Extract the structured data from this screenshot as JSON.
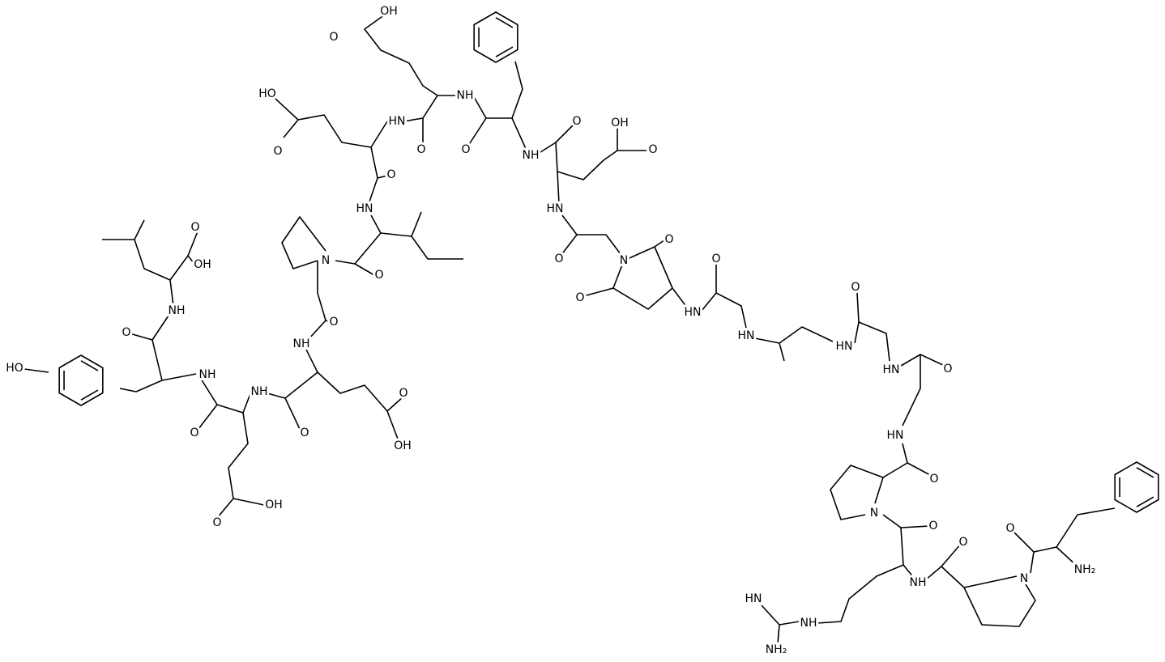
{
  "atom_labels": [
    "OH",
    "O",
    "HO",
    "O",
    "NH",
    "HN",
    "O",
    "O",
    "O",
    "OH",
    "O",
    "NH",
    "O",
    "HN",
    "HN",
    "O",
    "N",
    "O",
    "N",
    "O",
    "OH",
    "O",
    "O",
    "O",
    "HN",
    "O",
    "NH",
    "NH",
    "O",
    "HN",
    "HN",
    "O",
    "HN",
    "O",
    "HO",
    "NH",
    "NH",
    "O",
    "O",
    "O",
    "OH",
    "HN",
    "O",
    "OH",
    "O",
    "N",
    "O",
    "O",
    "O",
    "N",
    "NH₂",
    "HN",
    "NH",
    "NH",
    "NH₂"
  ]
}
